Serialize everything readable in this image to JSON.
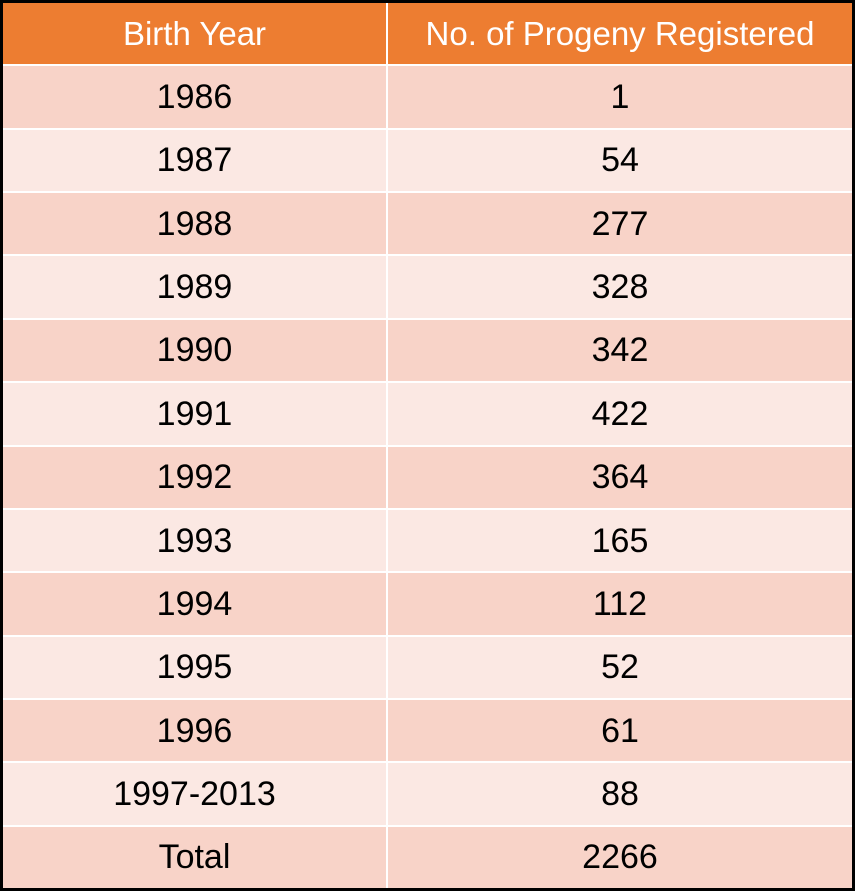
{
  "table": {
    "headers": [
      "Birth Year",
      "No. of Progeny Registered"
    ],
    "rows": [
      [
        "1986",
        "1"
      ],
      [
        "1987",
        "54"
      ],
      [
        "1988",
        "277"
      ],
      [
        "1989",
        "328"
      ],
      [
        "1990",
        "342"
      ],
      [
        "1991",
        "422"
      ],
      [
        "1992",
        "364"
      ],
      [
        "1993",
        "165"
      ],
      [
        "1994",
        "112"
      ],
      [
        "1995",
        "52"
      ],
      [
        "1996",
        "61"
      ],
      [
        "1997-2013",
        "88"
      ],
      [
        "Total",
        "2266"
      ]
    ]
  },
  "colors": {
    "header_bg": "#ed7d31",
    "header_text": "#ffffff",
    "row_dark": "#f8d3c8",
    "row_light": "#fbe8e3",
    "border": "#000000"
  }
}
